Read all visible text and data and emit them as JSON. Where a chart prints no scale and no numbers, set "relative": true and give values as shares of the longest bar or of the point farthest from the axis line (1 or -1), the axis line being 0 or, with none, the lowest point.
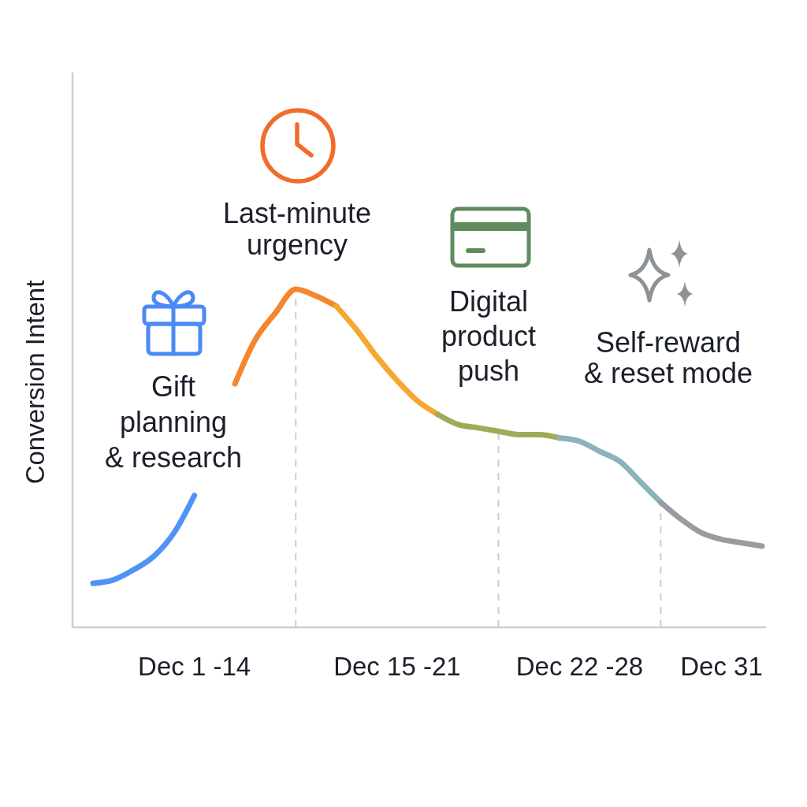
{
  "chart_data": {
    "type": "line",
    "ylabel": "Conversion Intent",
    "relative": true,
    "categories": [
      null,
      null,
      null,
      null,
      null,
      "Dec 1 -14",
      null,
      null,
      null,
      null,
      null,
      null,
      null,
      null,
      null,
      "Dec 15 -21",
      null,
      null,
      null,
      null,
      null,
      null,
      null,
      null,
      "Dec 22 -28",
      null,
      null,
      null,
      null,
      null,
      null,
      "Dec 31",
      null,
      null
    ],
    "series": [
      {
        "color": "#4f93f6",
        "values": [
          0.13,
          0.14,
          0.17,
          0.21,
          0.28,
          0.39,
          null,
          null,
          null,
          null,
          null,
          null,
          null,
          null,
          null,
          null,
          null,
          null,
          null,
          null,
          null,
          null,
          null,
          null,
          null,
          null,
          null,
          null,
          null,
          null,
          null,
          null,
          null,
          null
        ]
      },
      {
        "color": "#f6862d",
        "values": [
          null,
          null,
          null,
          null,
          null,
          null,
          null,
          0.72,
          0.85,
          0.93,
          1,
          0.98,
          0.95,
          null,
          null,
          null,
          null,
          null,
          null,
          null,
          null,
          null,
          null,
          null,
          null,
          null,
          null,
          null,
          null,
          null,
          null,
          null,
          null,
          null
        ]
      },
      {
        "color": "#f4a830",
        "values": [
          null,
          null,
          null,
          null,
          null,
          null,
          null,
          null,
          null,
          null,
          null,
          null,
          0.95,
          0.88,
          0.8,
          0.73,
          0.67,
          0.63,
          null,
          null,
          null,
          null,
          null,
          null,
          null,
          null,
          null,
          null,
          null,
          null,
          null,
          null,
          null,
          null
        ]
      },
      {
        "color": "#9fab58",
        "values": [
          null,
          null,
          null,
          null,
          null,
          null,
          null,
          null,
          null,
          null,
          null,
          null,
          null,
          null,
          null,
          null,
          null,
          0.63,
          0.6,
          0.59,
          0.58,
          0.57,
          0.57,
          0.56,
          null,
          null,
          null,
          null,
          null,
          null,
          null,
          null,
          null,
          null
        ]
      },
      {
        "color": "#8ab3bc",
        "values": [
          null,
          null,
          null,
          null,
          null,
          null,
          null,
          null,
          null,
          null,
          null,
          null,
          null,
          null,
          null,
          null,
          null,
          null,
          null,
          null,
          null,
          null,
          null,
          0.56,
          0.55,
          0.52,
          0.49,
          0.43,
          0.37,
          null,
          null,
          null,
          null,
          null
        ]
      },
      {
        "color": "#989ca0",
        "values": [
          null,
          null,
          null,
          null,
          null,
          null,
          null,
          null,
          null,
          null,
          null,
          null,
          null,
          null,
          null,
          null,
          null,
          null,
          null,
          null,
          null,
          null,
          null,
          null,
          null,
          null,
          null,
          null,
          0.37,
          0.32,
          0.28,
          0.26,
          0.25,
          0.24
        ]
      }
    ],
    "annotations": [
      "Gift\nplanning\n& research",
      "Last-minute\nurgency",
      "Digital\nproduct\npush",
      "Self-reward\n& reset mode"
    ]
  }
}
